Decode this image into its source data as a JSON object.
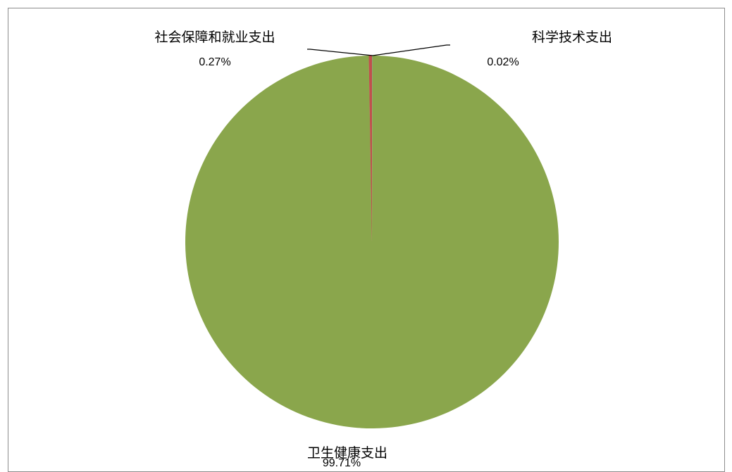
{
  "chart_data": {
    "type": "pie",
    "categories": [
      "科学技术支出",
      "卫生健康支出",
      "社会保障和就业支出"
    ],
    "values": [
      0.02,
      99.71,
      0.27
    ],
    "labels": [
      "0.02%",
      "99.71%",
      "0.27%"
    ],
    "colors": [
      "#4f81bd",
      "#8aa64c",
      "#c0504d"
    ]
  }
}
